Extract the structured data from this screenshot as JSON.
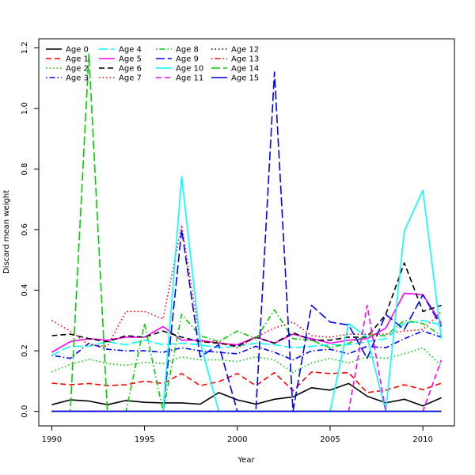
{
  "chart_data": {
    "type": "line",
    "title": "",
    "xlabel": "Year",
    "ylabel": "Discard mean weight",
    "xlim": [
      1989.3,
      2011.7
    ],
    "ylim": [
      -0.048,
      1.23
    ],
    "xticks": [
      1990,
      1995,
      2000,
      2005,
      2010
    ],
    "yticks": [
      0.0,
      0.2,
      0.4,
      0.6,
      0.8,
      1.0,
      1.2
    ],
    "ytick_labels": [
      "0.0",
      "0.2",
      "0.4",
      "0.6",
      "0.8",
      "1.0",
      "1.2"
    ],
    "legend_position": "top-left",
    "x": [
      1990,
      1991,
      1992,
      1993,
      1994,
      1995,
      1996,
      1997,
      1998,
      1999,
      2000,
      2001,
      2002,
      2003,
      2004,
      2005,
      2006,
      2007,
      2008,
      2009,
      2010,
      2011
    ],
    "series": [
      {
        "name": "Age 0",
        "color": "#000000",
        "dash": "solid",
        "values": [
          0.022,
          0.038,
          0.034,
          0.022,
          0.036,
          0.03,
          0.028,
          0.028,
          0.024,
          0.062,
          0.038,
          0.024,
          0.04,
          0.048,
          0.078,
          0.07,
          0.092,
          0.05,
          0.028,
          0.04,
          0.018,
          0.045
        ]
      },
      {
        "name": "Age 1",
        "color": "#ff0000",
        "dash": "dashed",
        "values": [
          0.093,
          0.088,
          0.092,
          0.085,
          0.088,
          0.1,
          0.092,
          0.125,
          0.085,
          0.098,
          0.125,
          0.085,
          0.128,
          0.068,
          0.13,
          0.125,
          0.128,
          0.062,
          0.07,
          0.088,
          0.072,
          0.093
        ]
      },
      {
        "name": "Age 2",
        "color": "#00cd00",
        "dash": "dotted",
        "values": [
          0.13,
          0.155,
          0.172,
          0.158,
          0.152,
          0.162,
          0.158,
          0.18,
          0.17,
          0.17,
          0.165,
          0.18,
          0.17,
          0.128,
          0.16,
          0.175,
          0.16,
          0.18,
          0.175,
          0.19,
          0.21,
          0.15
        ]
      },
      {
        "name": "Age 3",
        "color": "#0000ff",
        "dash": "dotdash",
        "values": [
          0.185,
          0.175,
          0.225,
          0.205,
          0.2,
          0.2,
          0.195,
          0.21,
          0.2,
          0.195,
          0.19,
          0.215,
          0.195,
          0.17,
          0.2,
          0.205,
          0.19,
          0.215,
          0.21,
          0.24,
          0.265,
          0.245
        ]
      },
      {
        "name": "Age 4",
        "color": "#00ffff",
        "dash": "longdash",
        "values": [
          0.185,
          0.215,
          0.215,
          0.23,
          0.22,
          0.235,
          0.22,
          0.225,
          0.22,
          0.21,
          0.215,
          0.225,
          0.22,
          0.21,
          0.215,
          0.22,
          0.22,
          0.23,
          0.24,
          0.29,
          0.3,
          0.285
        ]
      },
      {
        "name": "Age 5",
        "color": "#ff00ff",
        "dash": "solid",
        "values": [
          0.195,
          0.23,
          0.24,
          0.235,
          0.245,
          0.245,
          0.28,
          0.235,
          0.235,
          0.225,
          0.22,
          0.245,
          0.225,
          0.255,
          0.24,
          0.225,
          0.235,
          0.24,
          0.275,
          0.39,
          0.385,
          0.29
        ]
      },
      {
        "name": "Age 6",
        "color": "#000000",
        "dash": "dashed",
        "values": [
          0.25,
          0.255,
          0.24,
          0.23,
          0.25,
          0.245,
          0.265,
          0.245,
          0.23,
          0.225,
          0.215,
          0.245,
          0.225,
          0.26,
          0.235,
          0.235,
          0.245,
          0.245,
          0.32,
          0.49,
          0.33,
          0.35
        ]
      },
      {
        "name": "Age 7",
        "color": "#ff0000",
        "dash": "dotted",
        "values": [
          0.3,
          0.265,
          0.22,
          0.215,
          0.33,
          0.33,
          0.305,
          0.615,
          0.23,
          0.23,
          0.21,
          0.245,
          0.275,
          0.295,
          0.25,
          0.245,
          0.255,
          0.255,
          0.255,
          0.265,
          0.27,
          0.33
        ]
      },
      {
        "name": "Age 8",
        "color": "#00cd00",
        "dash": "dotdash",
        "values": [
          0.0,
          0.0,
          0.0,
          0.0,
          0.0,
          0.29,
          0.0,
          0.32,
          0.25,
          0.23,
          0.265,
          0.24,
          0.335,
          0.24,
          0.235,
          0.21,
          0.225,
          0.25,
          0.25,
          0.3,
          0.29,
          0.25
        ]
      },
      {
        "name": "Age 9",
        "color": "#0000ff",
        "dash": "longdash",
        "values": [
          0.0,
          0.0,
          0.0,
          0.0,
          0.0,
          0.0,
          0.0,
          0.6,
          0.18,
          0.22,
          0.0,
          0.0,
          1.12,
          0.0,
          0.35,
          0.295,
          0.285,
          0.175,
          0.32,
          0.27,
          0.385,
          0.28
        ]
      },
      {
        "name": "Age 10",
        "color": "#00ffff",
        "dash": "solid",
        "values": [
          0.0,
          0.0,
          0.0,
          0.0,
          0.0,
          0.0,
          0.0,
          0.775,
          0.23,
          0.0,
          0.0,
          0.0,
          0.0,
          0.0,
          0.0,
          0.0,
          0.29,
          0.245,
          0.0,
          0.595,
          0.73,
          0.24
        ]
      },
      {
        "name": "Age 11",
        "color": "#ff00ff",
        "dash": "dashed",
        "values": [
          0.0,
          0.0,
          0.0,
          0.0,
          0.0,
          0.0,
          0.0,
          0.0,
          0.0,
          0.0,
          0.0,
          0.0,
          0.0,
          0.0,
          0.0,
          0.0,
          0.0,
          0.35,
          0.0,
          0.0,
          0.0,
          0.17
        ]
      },
      {
        "name": "Age 12",
        "color": "#000000",
        "dash": "dotted",
        "values": [
          0.0,
          0.0,
          0.0,
          0.0,
          0.0,
          0.0,
          0.0,
          0.0,
          0.0,
          0.0,
          0.0,
          0.0,
          0.0,
          0.0,
          0.0,
          0.0,
          0.0,
          0.0,
          0.0,
          0.0,
          0.0,
          0.0
        ]
      },
      {
        "name": "Age 13",
        "color": "#ff0000",
        "dash": "dotdash",
        "values": [
          0.0,
          0.0,
          0.0,
          0.0,
          0.0,
          0.0,
          0.0,
          0.0,
          0.0,
          0.0,
          0.0,
          0.0,
          0.0,
          0.0,
          0.0,
          0.0,
          0.0,
          0.0,
          0.0,
          0.0,
          0.0,
          0.0
        ]
      },
      {
        "name": "Age 14",
        "color": "#00cd00",
        "dash": "longdash",
        "values": [
          0.0,
          0.0,
          1.18,
          0.0,
          0.0,
          0.0,
          0.0,
          0.0,
          0.0,
          0.0,
          0.0,
          0.0,
          0.0,
          0.0,
          0.0,
          0.0,
          0.0,
          0.0,
          0.0,
          0.0,
          0.0,
          0.0
        ]
      },
      {
        "name": "Age 15",
        "color": "#0000ff",
        "dash": "solid",
        "values": [
          0.0,
          0.0,
          0.0,
          0.0,
          0.0,
          0.0,
          0.0,
          0.0,
          0.0,
          0.0,
          0.0,
          0.0,
          0.0,
          0.0,
          0.0,
          0.0,
          0.0,
          0.0,
          0.0,
          0.0,
          0.0,
          0.0
        ]
      }
    ]
  }
}
